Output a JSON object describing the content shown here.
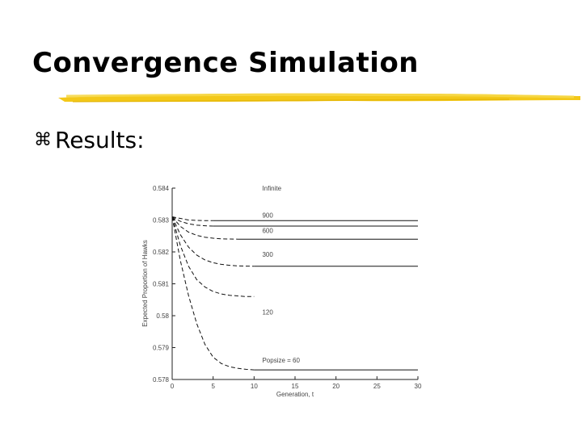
{
  "slide": {
    "title": "Convergence Simulation",
    "bullet": "Results:",
    "bullet_icon": "z-bullet-icon",
    "accent_color": "#f2c200"
  },
  "chart_data": {
    "type": "line",
    "xlabel": "Generation, t",
    "ylabel": "Expected Proportion of Hawks",
    "xlim": [
      0,
      30
    ],
    "ylim": [
      0.578,
      0.584
    ],
    "xticks": [
      "0",
      "5",
      "10",
      "15",
      "20",
      "25",
      "30"
    ],
    "yticks": [
      "0.578",
      "0.579",
      "0.58",
      "0.581",
      "0.582",
      "0.583",
      "0.584"
    ],
    "series": [
      {
        "name": "Infinite",
        "x": [
          0,
          1,
          2,
          3,
          4,
          5,
          30
        ],
        "y": [
          0.5831,
          0.58305,
          0.583,
          0.58299,
          0.58298,
          0.58298,
          0.58298
        ]
      },
      {
        "name": "900",
        "x": [
          0,
          1,
          2,
          3,
          4,
          5,
          30
        ],
        "y": [
          0.5831,
          0.58296,
          0.58288,
          0.58284,
          0.58282,
          0.58281,
          0.58281
        ]
      },
      {
        "name": "600",
        "x": [
          0,
          1,
          2,
          3,
          4,
          5,
          6,
          8,
          30
        ],
        "y": [
          0.5831,
          0.5828,
          0.58262,
          0.58252,
          0.58246,
          0.58243,
          0.58241,
          0.5824,
          0.5824
        ]
      },
      {
        "name": "300",
        "x": [
          0,
          1,
          2,
          3,
          4,
          5,
          6,
          7,
          8,
          10,
          30
        ],
        "y": [
          0.5831,
          0.58254,
          0.58215,
          0.5819,
          0.58175,
          0.58166,
          0.58161,
          0.58158,
          0.58156,
          0.58155,
          0.58155
        ]
      },
      {
        "name": "120",
        "x": [
          0,
          1,
          2,
          3,
          4,
          5,
          6,
          7,
          8,
          9,
          10,
          11
        ],
        "y": [
          0.5831,
          0.5822,
          0.58155,
          0.58113,
          0.5809,
          0.58076,
          0.58068,
          0.58064,
          0.58062,
          0.5806,
          0.5806,
          0.5806
        ]
      },
      {
        "name": "Popsize = 60",
        "x": [
          0,
          1,
          2,
          3,
          4,
          5,
          6,
          7,
          8,
          9,
          10,
          30
        ],
        "y": [
          0.5831,
          0.58173,
          0.58063,
          0.57975,
          0.5791,
          0.5787,
          0.5785,
          0.5784,
          0.57835,
          0.57832,
          0.5783,
          0.5783
        ]
      }
    ],
    "labels": [
      {
        "text": "Infinite",
        "x": 11.0,
        "y": 0.58393
      },
      {
        "text": "900",
        "x": 11.0,
        "y": 0.58307
      },
      {
        "text": "600",
        "x": 11.0,
        "y": 0.5826
      },
      {
        "text": "300",
        "x": 11.0,
        "y": 0.58185
      },
      {
        "text": "120",
        "x": 11.0,
        "y": 0.58004
      },
      {
        "text": "Popsize = 60",
        "x": 11.0,
        "y": 0.57853
      }
    ],
    "grid": false
  }
}
